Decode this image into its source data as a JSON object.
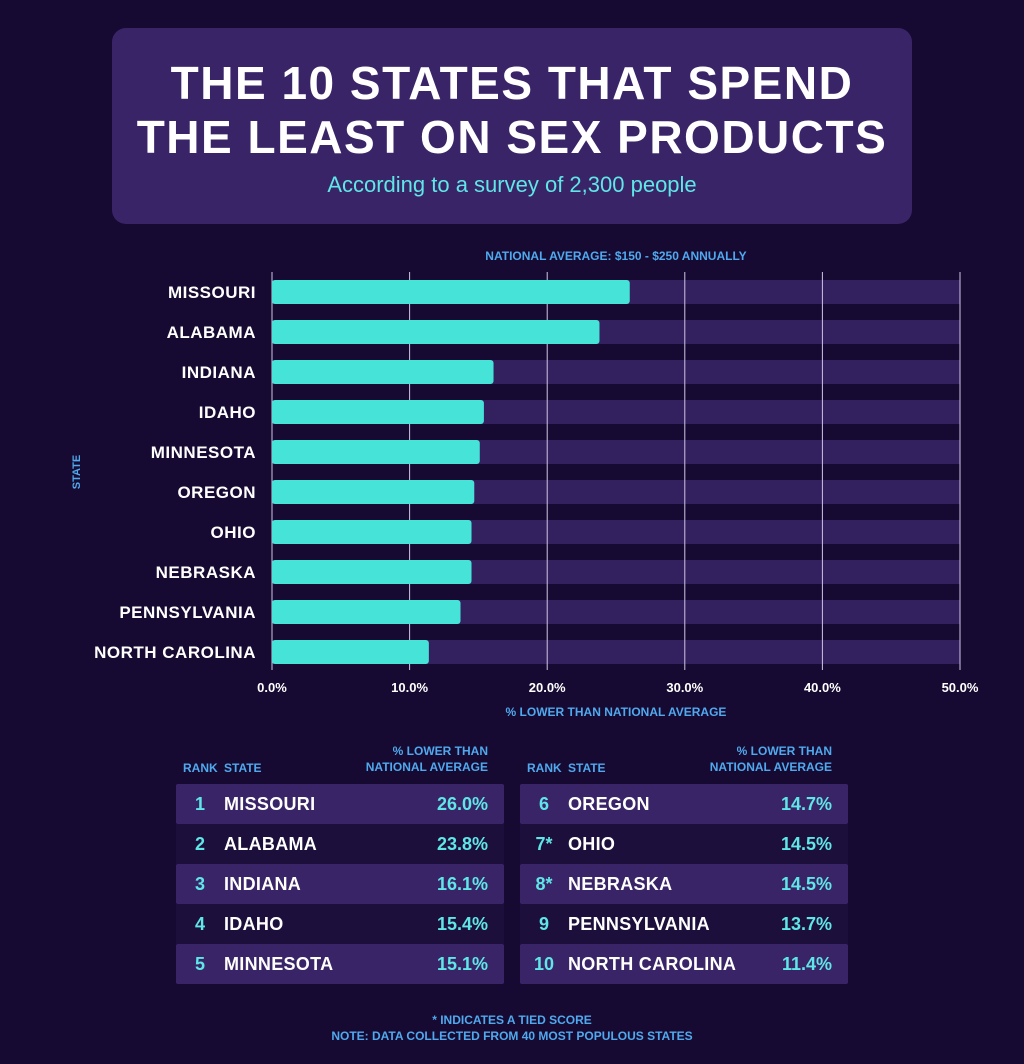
{
  "header": {
    "title_line1": "THE 10 STATES THAT SPEND",
    "title_line2": "THE LEAST ON SEX PRODUCTS",
    "subtitle": "According to a survey of 2,300 people"
  },
  "colors": {
    "background": "#170a32",
    "panel": "#3a2468",
    "bar": "#46e3d8",
    "track": "#33205e",
    "accent_text": "#5fe6e6",
    "label_blue": "#4fa9ee"
  },
  "chart_data": {
    "type": "bar",
    "orientation": "horizontal",
    "annotation": "NATIONAL AVERAGE: $150 - $250 ANNUALLY",
    "xlabel": "% LOWER THAN NATIONAL AVERAGE",
    "ylabel": "STATE",
    "xlim": [
      0,
      50
    ],
    "xticks": [
      "0.0%",
      "10.0%",
      "20.0%",
      "30.0%",
      "40.0%",
      "50.0%"
    ],
    "grid": true,
    "categories": [
      "MISSOURI",
      "ALABAMA",
      "INDIANA",
      "IDAHO",
      "MINNESOTA",
      "OREGON",
      "OHIO",
      "NEBRASKA",
      "PENNSYLVANIA",
      "NORTH CAROLINA"
    ],
    "values": [
      26.0,
      23.8,
      16.1,
      15.4,
      15.1,
      14.7,
      14.5,
      14.5,
      13.7,
      11.4
    ]
  },
  "table": {
    "col_rank": "RANK",
    "col_state": "STATE",
    "col_pct_line1": "% LOWER THAN",
    "col_pct_line2": "NATIONAL AVERAGE",
    "rows": [
      {
        "rank": "1",
        "state": "MISSOURI",
        "pct": "26.0%"
      },
      {
        "rank": "2",
        "state": "ALABAMA",
        "pct": "23.8%"
      },
      {
        "rank": "3",
        "state": "INDIANA",
        "pct": "16.1%"
      },
      {
        "rank": "4",
        "state": "IDAHO",
        "pct": "15.4%"
      },
      {
        "rank": "5",
        "state": "MINNESOTA",
        "pct": "15.1%"
      },
      {
        "rank": "6",
        "state": "OREGON",
        "pct": "14.7%"
      },
      {
        "rank": "7*",
        "state": "OHIO",
        "pct": "14.5%"
      },
      {
        "rank": "8*",
        "state": "NEBRASKA",
        "pct": "14.5%"
      },
      {
        "rank": "9",
        "state": "PENNSYLVANIA",
        "pct": "13.7%"
      },
      {
        "rank": "10",
        "state": "NORTH CAROLINA",
        "pct": "11.4%"
      }
    ]
  },
  "footnotes": {
    "line1": "* INDICATES A TIED SCORE",
    "line2": "NOTE: DATA COLLECTED FROM 40 MOST POPULOUS STATES"
  }
}
